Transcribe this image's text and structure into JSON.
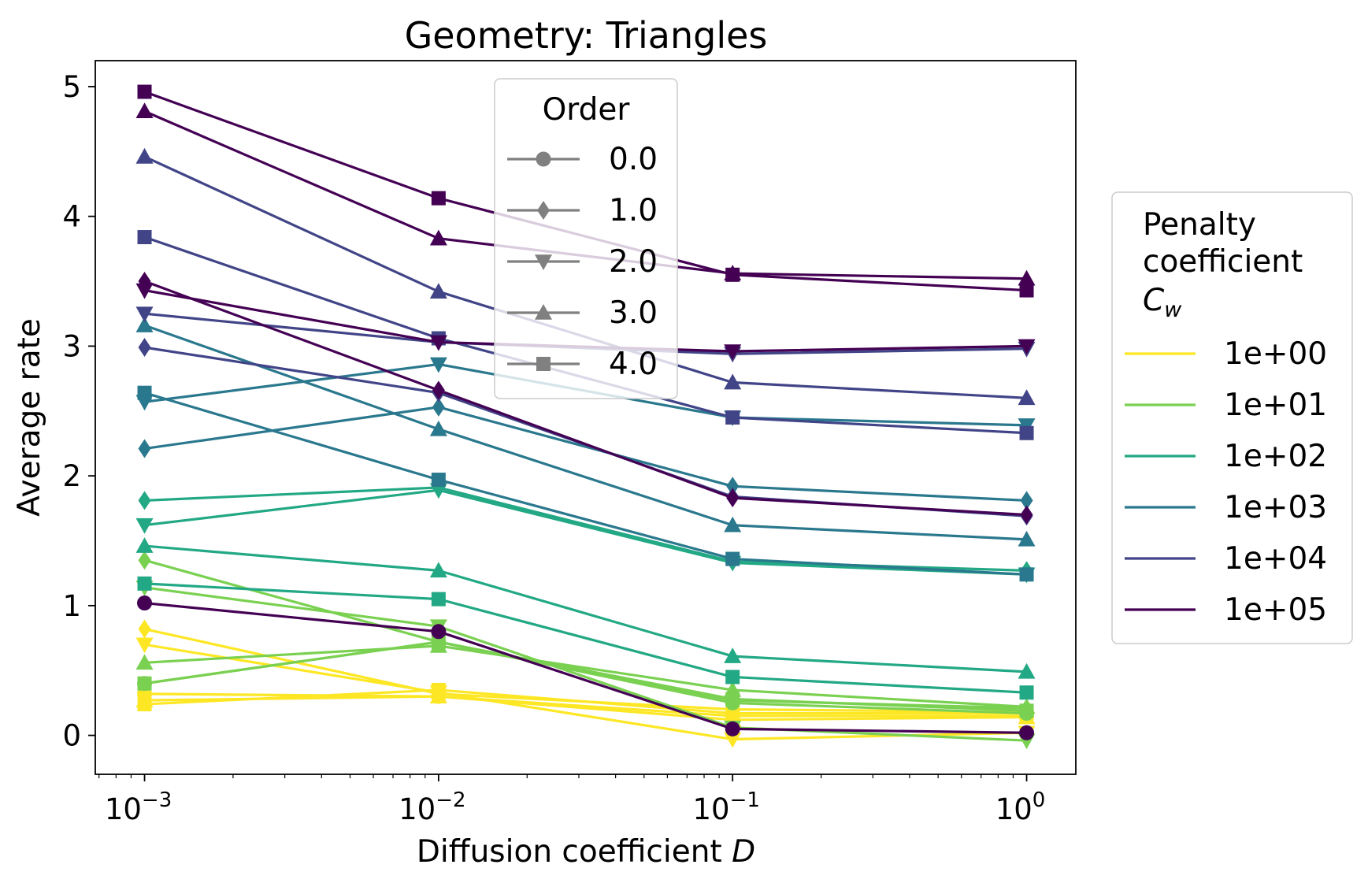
{
  "chart_data": {
    "type": "line",
    "title": "Geometry: Triangles",
    "xlabel": "Diffusion coefficient",
    "xlabel_var": "D",
    "ylabel": "Average rate",
    "x_scale": "log",
    "x": [
      0.001,
      0.01,
      0.1,
      1
    ],
    "x_tick_labels": [
      {
        "base": "10",
        "exp": "−3"
      },
      {
        "base": "10",
        "exp": "−2"
      },
      {
        "base": "10",
        "exp": "−1"
      },
      {
        "base": "10",
        "exp": "0"
      }
    ],
    "xlim": [
      0.00068,
      1.47
    ],
    "ylim": [
      -0.3,
      5.2
    ],
    "y_ticks": [
      0,
      1,
      2,
      3,
      4,
      5
    ],
    "y_tick_labels": [
      "0",
      "1",
      "2",
      "3",
      "4",
      "5"
    ],
    "grid": false,
    "order_legend": {
      "title": "Order",
      "placement": "upper-center",
      "entries": [
        {
          "label": "0.0",
          "marker": "circle"
        },
        {
          "label": "1.0",
          "marker": "diamond"
        },
        {
          "label": "2.0",
          "marker": "triangle-down"
        },
        {
          "label": "3.0",
          "marker": "triangle-up"
        },
        {
          "label": "4.0",
          "marker": "square"
        }
      ],
      "color": "#808080"
    },
    "penalty_legend": {
      "title_lines": [
        "Penalty",
        "coefficient"
      ],
      "title_var": "C",
      "title_var_sub": "w",
      "placement": "outside-right",
      "entries": [
        {
          "label": "1e+00",
          "color": "#fde725"
        },
        {
          "label": "1e+01",
          "color": "#7ad151"
        },
        {
          "label": "1e+02",
          "color": "#22a884"
        },
        {
          "label": "1e+03",
          "color": "#2a788e"
        },
        {
          "label": "1e+04",
          "color": "#414487"
        },
        {
          "label": "1e+05",
          "color": "#440154"
        }
      ]
    },
    "series": [
      {
        "penalty": "1e+00",
        "order": "0.0",
        "marker": "circle",
        "color": "#fde725",
        "values": [
          0.32,
          0.3,
          0.15,
          0.15
        ]
      },
      {
        "penalty": "1e+00",
        "order": "1.0",
        "marker": "diamond",
        "color": "#fde725",
        "values": [
          0.82,
          0.32,
          0.2,
          0.18
        ]
      },
      {
        "penalty": "1e+00",
        "order": "2.0",
        "marker": "triangle-down",
        "color": "#fde725",
        "values": [
          0.7,
          0.33,
          -0.03,
          0.02
        ]
      },
      {
        "penalty": "1e+00",
        "order": "3.0",
        "marker": "triangle-up",
        "color": "#fde725",
        "values": [
          0.27,
          0.3,
          0.12,
          0.14
        ]
      },
      {
        "penalty": "1e+00",
        "order": "4.0",
        "marker": "square",
        "color": "#fde725",
        "values": [
          0.24,
          0.35,
          0.17,
          0.17
        ]
      },
      {
        "penalty": "1e+01",
        "order": "0.0",
        "marker": "circle",
        "color": "#7ad151",
        "values": [
          0.4,
          0.72,
          0.25,
          0.17
        ]
      },
      {
        "penalty": "1e+01",
        "order": "1.0",
        "marker": "diamond",
        "color": "#7ad151",
        "values": [
          1.35,
          0.72,
          0.27,
          0.21
        ]
      },
      {
        "penalty": "1e+01",
        "order": "2.0",
        "marker": "triangle-down",
        "color": "#7ad151",
        "values": [
          1.14,
          0.84,
          0.06,
          -0.04
        ]
      },
      {
        "penalty": "1e+01",
        "order": "3.0",
        "marker": "triangle-up",
        "color": "#7ad151",
        "values": [
          0.56,
          0.69,
          0.35,
          0.22
        ]
      },
      {
        "penalty": "1e+01",
        "order": "4.0",
        "marker": "square",
        "color": "#7ad151",
        "values": [
          0.4,
          0.72,
          0.28,
          0.19
        ]
      },
      {
        "penalty": "1e+02",
        "order": "1.0",
        "marker": "diamond",
        "color": "#22a884",
        "values": [
          1.81,
          1.91,
          1.34,
          1.27
        ]
      },
      {
        "penalty": "1e+02",
        "order": "2.0",
        "marker": "triangle-down",
        "color": "#22a884",
        "values": [
          1.62,
          1.89,
          1.33,
          1.24
        ]
      },
      {
        "penalty": "1e+02",
        "order": "3.0",
        "marker": "triangle-up",
        "color": "#22a884",
        "values": [
          1.46,
          1.27,
          0.61,
          0.49
        ]
      },
      {
        "penalty": "1e+02",
        "order": "4.0",
        "marker": "square",
        "color": "#22a884",
        "values": [
          1.17,
          1.05,
          0.45,
          0.33
        ]
      },
      {
        "penalty": "1e+03",
        "order": "1.0",
        "marker": "diamond",
        "color": "#2a788e",
        "values": [
          2.21,
          2.53,
          1.92,
          1.81
        ]
      },
      {
        "penalty": "1e+03",
        "order": "2.0",
        "marker": "triangle-down",
        "color": "#2a788e",
        "values": [
          2.57,
          2.86,
          2.45,
          2.39
        ]
      },
      {
        "penalty": "1e+03",
        "order": "3.0",
        "marker": "triangle-up",
        "color": "#2a788e",
        "values": [
          3.16,
          2.36,
          1.62,
          1.51
        ]
      },
      {
        "penalty": "1e+03",
        "order": "4.0",
        "marker": "square",
        "color": "#2a788e",
        "values": [
          2.64,
          1.97,
          1.36,
          1.24
        ]
      },
      {
        "penalty": "1e+04",
        "order": "1.0",
        "marker": "diamond",
        "color": "#414487",
        "values": [
          2.99,
          2.64,
          1.84,
          1.69
        ]
      },
      {
        "penalty": "1e+04",
        "order": "2.0",
        "marker": "triangle-down",
        "color": "#414487",
        "values": [
          3.25,
          3.03,
          2.94,
          2.98
        ]
      },
      {
        "penalty": "1e+04",
        "order": "3.0",
        "marker": "triangle-up",
        "color": "#414487",
        "values": [
          4.46,
          3.42,
          2.72,
          2.6
        ]
      },
      {
        "penalty": "1e+04",
        "order": "4.0",
        "marker": "square",
        "color": "#414487",
        "values": [
          3.84,
          3.06,
          2.45,
          2.33
        ]
      },
      {
        "penalty": "1e+05",
        "order": "0.0",
        "marker": "circle",
        "color": "#440154",
        "values": [
          1.02,
          0.8,
          0.05,
          0.02
        ]
      },
      {
        "penalty": "1e+05",
        "order": "1.0",
        "marker": "diamond",
        "color": "#440154",
        "values": [
          3.5,
          2.66,
          1.83,
          1.7
        ]
      },
      {
        "penalty": "1e+05",
        "order": "2.0",
        "marker": "triangle-down",
        "color": "#440154",
        "values": [
          3.43,
          3.03,
          2.96,
          3.0
        ]
      },
      {
        "penalty": "1e+05",
        "order": "3.0",
        "marker": "triangle-up",
        "color": "#440154",
        "values": [
          4.81,
          3.83,
          3.56,
          3.52
        ]
      },
      {
        "penalty": "1e+05",
        "order": "4.0",
        "marker": "square",
        "color": "#440154",
        "values": [
          4.96,
          4.14,
          3.55,
          3.43
        ]
      }
    ]
  }
}
